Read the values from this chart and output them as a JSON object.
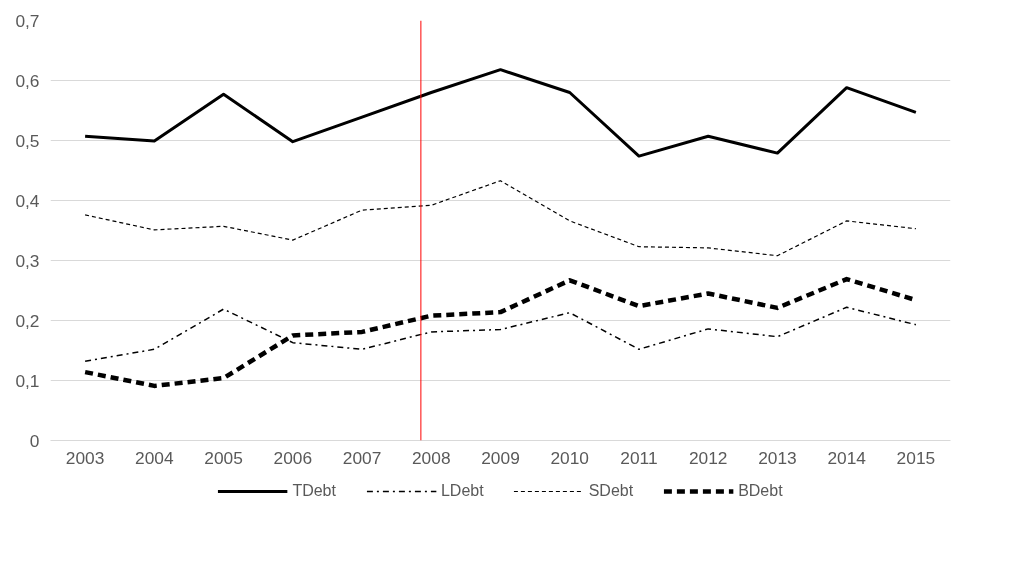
{
  "chart_data": {
    "type": "line",
    "x": [
      2003,
      2004,
      2005,
      2006,
      2007,
      2008,
      2009,
      2010,
      2011,
      2012,
      2013,
      2014,
      2015
    ],
    "series": [
      {
        "name": "TDebt",
        "color": "#000000",
        "line_style": "solid",
        "values": [
          0.507,
          0.499,
          0.577,
          0.498,
          0.539,
          0.58,
          0.618,
          0.58,
          0.474,
          0.507,
          0.479,
          0.588,
          0.547
        ]
      },
      {
        "name": "LDebt",
        "color": "#000000",
        "line_style": "dashdot",
        "values": [
          0.132,
          0.152,
          0.219,
          0.163,
          0.152,
          0.181,
          0.185,
          0.213,
          0.152,
          0.186,
          0.173,
          0.222,
          0.193
        ]
      },
      {
        "name": "SDebt",
        "color": "#000000",
        "line_style": "dotted",
        "values": [
          0.376,
          0.351,
          0.357,
          0.334,
          0.384,
          0.392,
          0.433,
          0.366,
          0.323,
          0.321,
          0.308,
          0.366,
          0.353
        ]
      },
      {
        "name": "BDebt",
        "color": "#000000",
        "line_style": "dashed",
        "values": [
          0.114,
          0.091,
          0.104,
          0.175,
          0.181,
          0.208,
          0.214,
          0.267,
          0.224,
          0.245,
          0.221,
          0.269,
          0.234
        ]
      }
    ],
    "xlim": [
      2002.5,
      2015.5
    ],
    "xticks": [
      2003,
      2004,
      2005,
      2006,
      2007,
      2008,
      2009,
      2010,
      2011,
      2012,
      2013,
      2014,
      2015
    ],
    "ylim": [
      0,
      0.7
    ],
    "yticks": [
      {
        "value": 0,
        "label": "0"
      },
      {
        "value": 0.1,
        "label": "0,1"
      },
      {
        "value": 0.2,
        "label": "0,2"
      },
      {
        "value": 0.3,
        "label": "0,3"
      },
      {
        "value": 0.4,
        "label": "0,4"
      },
      {
        "value": 0.5,
        "label": "0,5"
      },
      {
        "value": 0.6,
        "label": "0,6"
      },
      {
        "value": 0.7,
        "label": "0,7"
      }
    ],
    "ref_lines": [
      {
        "axis": "x",
        "value": 2007.85,
        "color": "#ff0000"
      }
    ],
    "grid": "y",
    "legend": "bottom",
    "marker": "none"
  }
}
